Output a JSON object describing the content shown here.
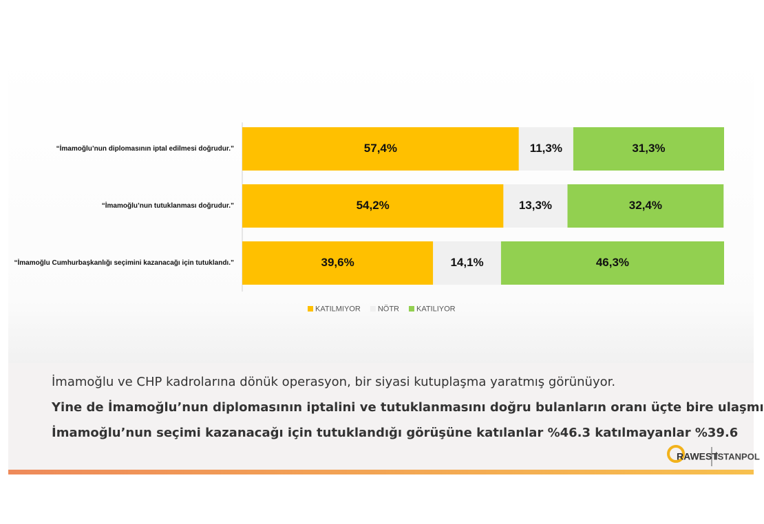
{
  "chart_data": {
    "type": "bar",
    "orientation": "horizontal",
    "stacked": true,
    "categories": [
      "“İmamoğlu’nun diplomasının iptal edilmesi doğrudur.”",
      "“İmamoğlu’nun tutuklanması doğrudur.”",
      "“İmamoğlu Cumhurbaşkanlığı seçimini kazanacağı için tutuklandı.”"
    ],
    "series": [
      {
        "name": "KATILMIYOR",
        "color": "#ffc000",
        "values": [
          57.4,
          54.2,
          39.6
        ],
        "value_labels": [
          "57,4%",
          "54,2%",
          "39,6%"
        ]
      },
      {
        "name": "NÖTR",
        "color": "#f0f0f0",
        "values": [
          11.3,
          13.3,
          14.1
        ],
        "value_labels": [
          "11,3%",
          "13,3%",
          "14,1%"
        ]
      },
      {
        "name": "KATILIYOR",
        "color": "#92d050",
        "values": [
          31.3,
          32.4,
          46.3
        ],
        "value_labels": [
          "31,3%",
          "32,4%",
          "46,3%"
        ]
      }
    ],
    "xlim": [
      0,
      100
    ],
    "legend": "bottom"
  },
  "caption": {
    "lines": [
      "İmamoğlu ve CHP kadrolarına dönük operasyon, bir siyasi kutuplaşma yaratmış görünüyor.",
      "Yine de İmamoğlu’nun diplomasının iptalini ve tutuklanmasını doğru bulanların oranı üçte bire ulaşmıyor.",
      "İmamoğlu’nun seçimi kazanacağı için tutuklandığı görüşüne katılanlar %46.3 katılmayanlar %39.6"
    ]
  },
  "logo": {
    "brand": "RAWEST",
    "partner": "İSTANPOL"
  }
}
